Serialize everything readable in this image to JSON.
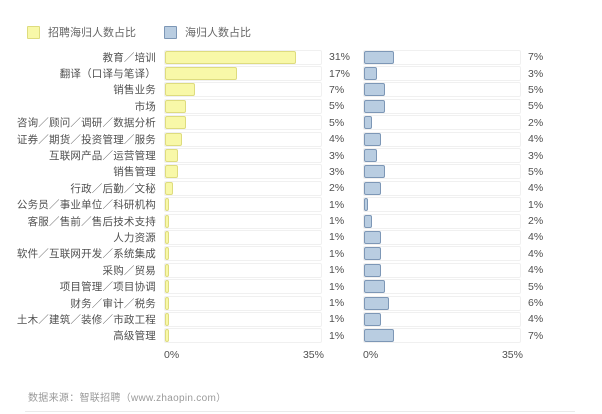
{
  "legend": {
    "items": [
      {
        "id": "recruit",
        "label": "招聘海归人数占比",
        "swatch_color": "#f8f8a8",
        "swatch_border": "#dedc7e"
      },
      {
        "id": "returnee",
        "label": "海归人数占比",
        "swatch_color": "#b9cde1",
        "swatch_border": "#7d97b6"
      }
    ]
  },
  "chart_data": {
    "type": "bar",
    "orientation": "horizontal",
    "grid": false,
    "legend_position": "top-left",
    "categories": [
      "教育／培训",
      "翻译（口译与笔译）",
      "销售业务",
      "市场",
      "咨询／顾问／调研／数据分析",
      "证券／期货／投资管理／服务",
      "互联网产品／运营管理",
      "销售管理",
      "行政／后勤／文秘",
      "公务员／事业单位／科研机构",
      "客服／售前／售后技术支持",
      "人力资源",
      "软件／互联网开发／系统集成",
      "采购／贸易",
      "项目管理／项目协调",
      "财务／审计／税务",
      "土木／建筑／装修／市政工程",
      "高级管理"
    ],
    "series": [
      {
        "name": "招聘海归人数占比",
        "color": "#f8f8a8",
        "border_color": "#dedc7e",
        "values": [
          31,
          17,
          7,
          5,
          5,
          4,
          3,
          3,
          2,
          1,
          1,
          1,
          1,
          1,
          1,
          1,
          1,
          1
        ]
      },
      {
        "name": "海归人数占比",
        "color": "#b9cde1",
        "border_color": "#7d97b6",
        "values": [
          7,
          3,
          5,
          5,
          2,
          4,
          3,
          5,
          4,
          1,
          2,
          4,
          4,
          4,
          5,
          6,
          4,
          7
        ]
      }
    ],
    "value_suffix": "%",
    "xlim": [
      0,
      35
    ],
    "axis": {
      "min_label": "0%",
      "max_label": "35%"
    }
  },
  "footer": {
    "source": "数据来源：智联招聘（www.zhaopin.com）"
  }
}
